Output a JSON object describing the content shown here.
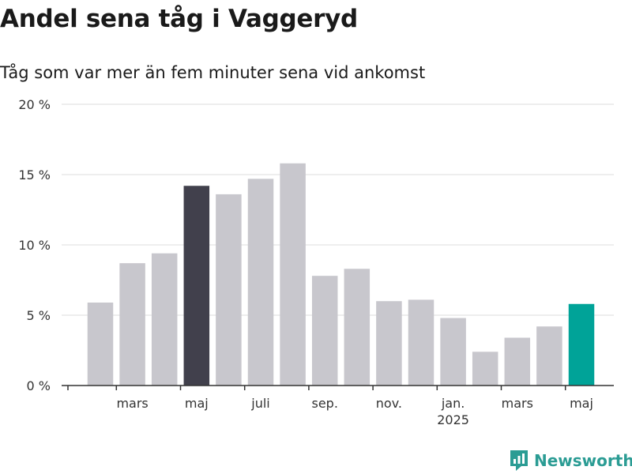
{
  "title": "Andel sena tåg i Vaggeryd",
  "subtitle": "Tåg som var mer än fem minuter sena vid ankomst",
  "brand": "Newsworthy",
  "colors": {
    "bar_default": "#c8c7cd",
    "bar_highlight_dark": "#41404c",
    "bar_highlight_teal": "#00a398",
    "grid": "#dddddd",
    "axis": "#333333",
    "brand": "#2b9c94"
  },
  "chart_data": {
    "type": "bar",
    "title": "Andel sena tåg i Vaggeryd",
    "subtitle": "Tåg som var mer än fem minuter sena vid ankomst",
    "categories": [
      "2024-02",
      "2024-03",
      "2024-04",
      "2024-05",
      "2024-06",
      "2024-07",
      "2024-08",
      "2024-09",
      "2024-10",
      "2024-11",
      "2024-12",
      "2025-01",
      "2025-02",
      "2025-03",
      "2025-04",
      "2025-05"
    ],
    "values": [
      5.9,
      8.7,
      9.4,
      14.2,
      13.6,
      14.7,
      15.8,
      7.8,
      8.3,
      6.0,
      6.1,
      4.8,
      2.4,
      3.4,
      4.2,
      5.8
    ],
    "highlight": {
      "2024-05": "bar_highlight_dark",
      "2025-05": "bar_highlight_teal"
    },
    "ylim": [
      0,
      20
    ],
    "yticks": [
      0,
      5,
      10,
      15,
      20
    ],
    "ytick_labels": [
      "0 %",
      "5 %",
      "10 %",
      "15 %",
      "20 %"
    ],
    "xticks": [
      {
        "category": "2024-03",
        "label": "mars",
        "sub": ""
      },
      {
        "category": "2024-05",
        "label": "maj",
        "sub": ""
      },
      {
        "category": "2024-07",
        "label": "juli",
        "sub": ""
      },
      {
        "category": "2024-09",
        "label": "sep.",
        "sub": ""
      },
      {
        "category": "2024-11",
        "label": "nov.",
        "sub": ""
      },
      {
        "category": "2025-01",
        "label": "jan.",
        "sub": "2025"
      },
      {
        "category": "2025-03",
        "label": "mars",
        "sub": ""
      },
      {
        "category": "2025-05",
        "label": "maj",
        "sub": ""
      }
    ],
    "xlabel": "",
    "ylabel": "",
    "grid": true,
    "legend": "none"
  }
}
